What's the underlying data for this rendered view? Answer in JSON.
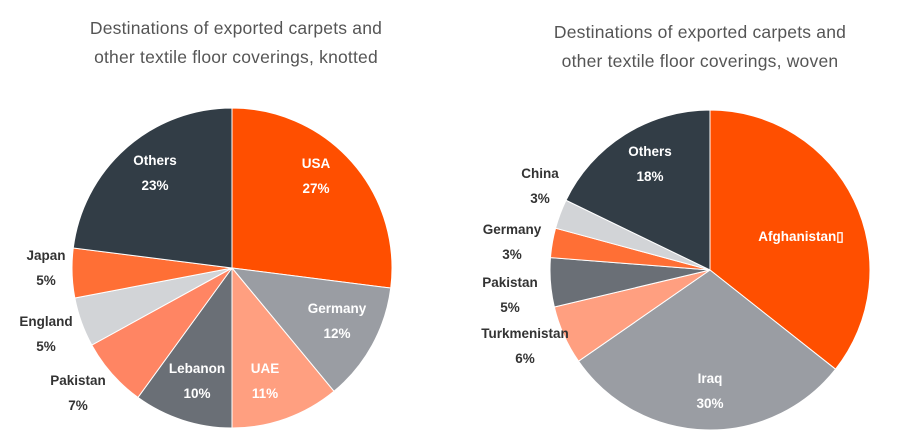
{
  "chart_data": [
    {
      "type": "pie",
      "title_lines": [
        "Destinations of exported carpets and",
        "other textile floor coverings, knotted"
      ],
      "colors": {
        "orange": "#ff4f00",
        "grey": "#9a9da3",
        "salmon": "#ff9f80",
        "slate": "#6a6f76",
        "coral": "#ff8563",
        "lightgrey": "#d2d4d7",
        "orange2": "#ff6f35",
        "navy": "#323d46"
      },
      "slices": [
        {
          "name": "USA",
          "value": 27,
          "label": "27%"
        },
        {
          "name": "Germany",
          "value": 12,
          "label": "12%"
        },
        {
          "name": "UAE",
          "value": 11,
          "label": "11%"
        },
        {
          "name": "Lebanon",
          "value": 10,
          "label": "10%"
        },
        {
          "name": "Pakistan",
          "value": 7,
          "label": "7%"
        },
        {
          "name": "England",
          "value": 5,
          "label": "5%"
        },
        {
          "name": "Japan",
          "value": 5,
          "label": "5%"
        },
        {
          "name": "Others",
          "value": 23,
          "label": "23%"
        }
      ]
    },
    {
      "type": "pie",
      "title_lines": [
        "Destinations of exported carpets and",
        "other textile floor coverings, woven"
      ],
      "slices": [
        {
          "name": "Afghanistan▯",
          "value": 36,
          "label": ""
        },
        {
          "name": "Iraq",
          "value": 30,
          "label": "30%"
        },
        {
          "name": "Turkmenistan",
          "value": 6,
          "label": "6%"
        },
        {
          "name": "Pakistan",
          "value": 5,
          "label": "5%"
        },
        {
          "name": "Germany",
          "value": 3,
          "label": "3%"
        },
        {
          "name": "China",
          "value": 3,
          "label": "3%"
        },
        {
          "name": "Others",
          "value": 18,
          "label": "18%"
        }
      ]
    }
  ]
}
